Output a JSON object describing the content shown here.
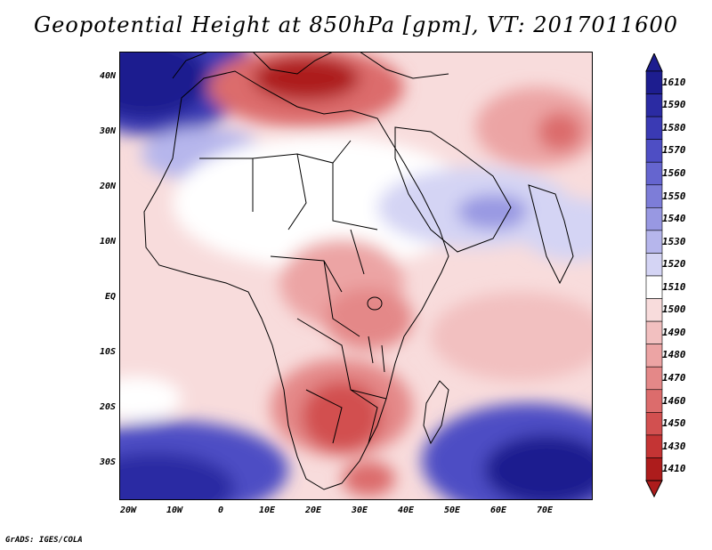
{
  "title": "Geopotential Height at 850hPa [gpm], VT: 2017011600",
  "footer": "GrADS: IGES/COLA",
  "map": {
    "lon_range": [
      -25,
      80
    ],
    "lat_range": [
      -37,
      45
    ],
    "lat_ticks": [
      "40N",
      "30N",
      "20N",
      "10N",
      "EQ",
      "10S",
      "20S",
      "30S"
    ],
    "lon_ticks": [
      "20W",
      "10W",
      "0",
      "10E",
      "20E",
      "30E",
      "40E",
      "50E",
      "60E",
      "70E"
    ]
  },
  "colorbar": {
    "labels": [
      "1610",
      "1590",
      "1580",
      "1570",
      "1560",
      "1550",
      "1540",
      "1530",
      "1520",
      "1510",
      "1500",
      "1490",
      "1480",
      "1470",
      "1460",
      "1450",
      "1430",
      "1410"
    ],
    "colors": [
      "#1d1d8f",
      "#2b2ba3",
      "#3a3ab4",
      "#4e4ec4",
      "#6565cf",
      "#7d7dd8",
      "#9898e2",
      "#b6b6ec",
      "#d4d4f4",
      "#ffffff",
      "#f8dcdc",
      "#f2c0c0",
      "#eca4a4",
      "#e48888",
      "#dc6c6c",
      "#d25050",
      "#c43434",
      "#ad1c1c"
    ]
  }
}
